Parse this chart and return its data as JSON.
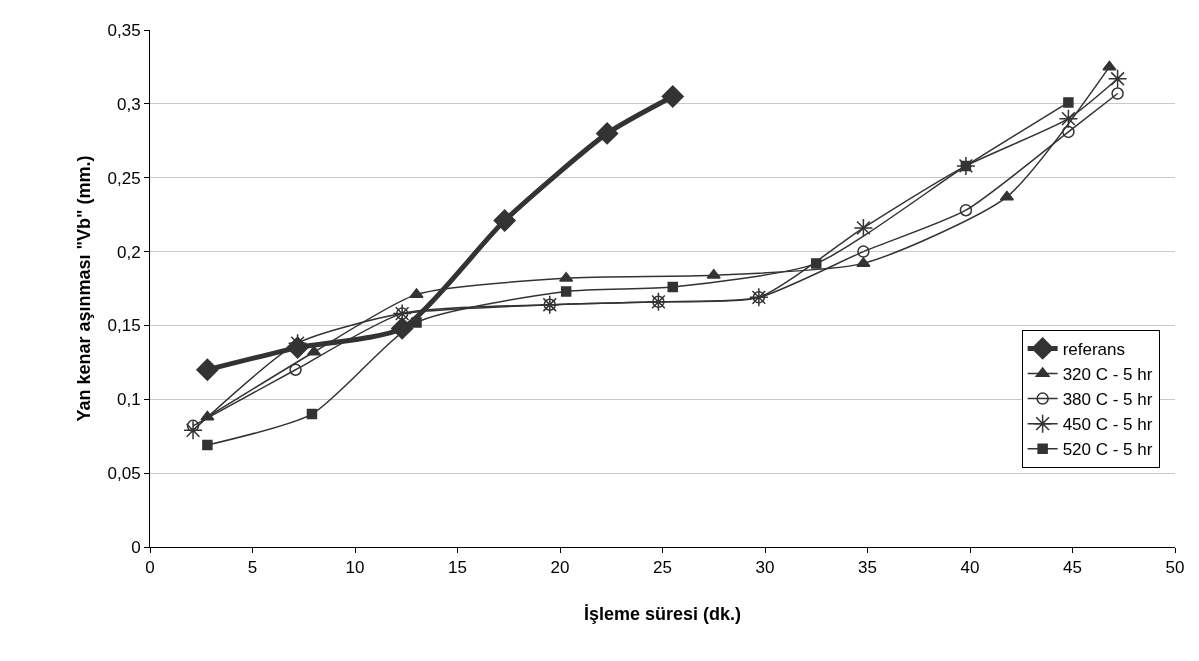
{
  "chart_data": {
    "type": "line",
    "xlabel": "İşleme süresi (dk.)",
    "ylabel": "Yan kenar aşınması \"Vb\" (mm.)",
    "xlim": [
      0,
      50
    ],
    "xticks": [
      0,
      5,
      10,
      15,
      20,
      25,
      30,
      35,
      40,
      45,
      50
    ],
    "ylim": [
      0,
      0.35
    ],
    "yticks": [
      {
        "value": 0,
        "label": "0"
      },
      {
        "value": 0.05,
        "label": "0,05"
      },
      {
        "value": 0.1,
        "label": "0,1"
      },
      {
        "value": 0.15,
        "label": "0,15"
      },
      {
        "value": 0.2,
        "label": "0,2"
      },
      {
        "value": 0.25,
        "label": "0,25"
      },
      {
        "value": 0.3,
        "label": "0,3"
      },
      {
        "value": 0.35,
        "label": "0,35"
      }
    ],
    "grid": "y",
    "legend": "right",
    "line_style": "solid",
    "series": [
      {
        "name": "referans",
        "color": "#333333",
        "marker": "diamond",
        "x": [
          2.8,
          7.2,
          12.3,
          17.3,
          22.3,
          25.5
        ],
        "values": [
          0.12,
          0.135,
          0.148,
          0.221,
          0.28,
          0.305
        ]
      },
      {
        "name": "320 C - 5 hr",
        "color": "#333333",
        "marker": "triangle",
        "x": [
          2.8,
          8,
          13,
          20.3,
          27.5,
          34.8,
          41.8,
          46.8
        ],
        "values": [
          0.088,
          0.132,
          0.171,
          0.182,
          0.184,
          0.192,
          0.237,
          0.325
        ]
      },
      {
        "name": "380 C - 5 hr",
        "color": "#333333",
        "marker": "circle",
        "x": [
          2.1,
          7.1,
          12.3,
          19.5,
          24.8,
          29.7,
          34.8,
          39.8,
          44.8,
          47.2
        ],
        "values": [
          0.082,
          0.12,
          0.158,
          0.164,
          0.166,
          0.169,
          0.2,
          0.228,
          0.281,
          0.307
        ]
      },
      {
        "name": "450 C - 5 hr",
        "color": "#333333",
        "marker": "cross",
        "x": [
          2.1,
          7.2,
          12.3,
          19.5,
          24.8,
          29.7,
          34.8,
          39.8,
          44.8,
          47.2
        ],
        "values": [
          0.079,
          0.138,
          0.158,
          0.164,
          0.166,
          0.169,
          0.216,
          0.258,
          0.29,
          0.317
        ]
      },
      {
        "name": "520 C - 5 hr",
        "color": "#333333",
        "marker": "square",
        "x": [
          2.8,
          7.9,
          13,
          20.3,
          25.5,
          32.5,
          39.8,
          44.8
        ],
        "values": [
          0.069,
          0.09,
          0.152,
          0.173,
          0.176,
          0.192,
          0.258,
          0.301
        ]
      }
    ]
  }
}
